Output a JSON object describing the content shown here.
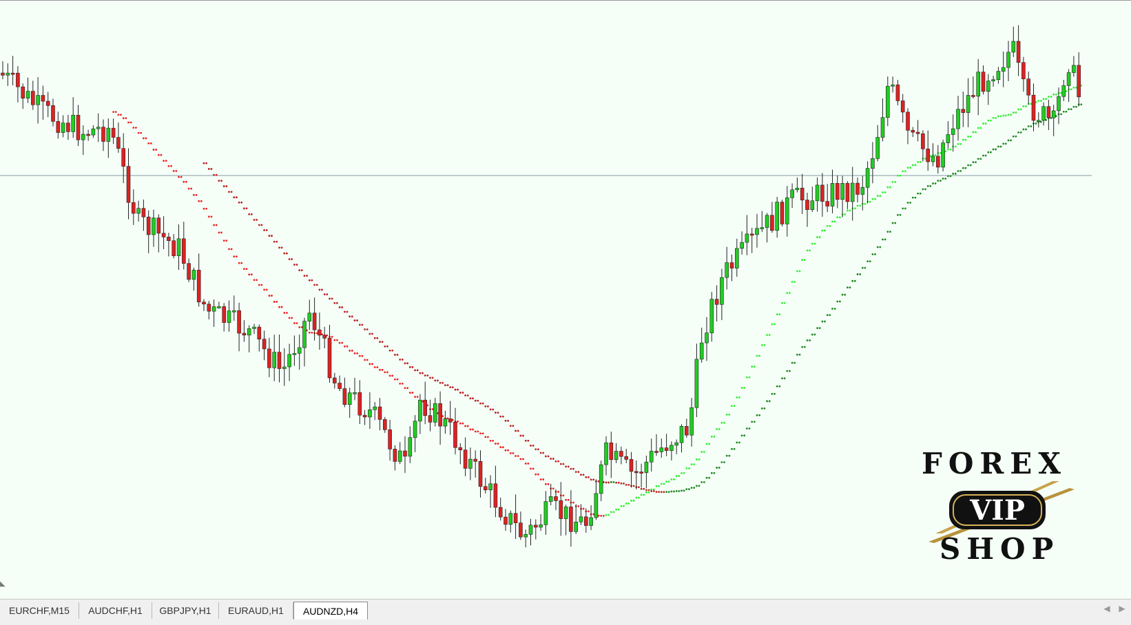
{
  "window": {
    "tabs": [
      {
        "label": "EURCHF,M15",
        "active": false
      },
      {
        "label": "AUDCHF,H1",
        "active": false
      },
      {
        "label": "GBPJPY,H1",
        "active": false
      },
      {
        "label": "EURAUD,H1",
        "active": false
      },
      {
        "label": "AUDNZD,H4",
        "active": true
      }
    ],
    "scroll_left_icon": "triangle-left-icon",
    "scroll_right_icon": "triangle-right-icon"
  },
  "logo": {
    "top_word": "FOREX",
    "badge_word": "VIP",
    "bottom_word": "SHOP"
  },
  "colors": {
    "bull_candle": "#22cc22",
    "bear_candle": "#dd2222",
    "fast_ma_up": "#33ee33",
    "slow_ma_up": "#228822",
    "fast_ma_down": "#ee2222",
    "slow_ma_down": "#bb2222",
    "horizontal_line": "#8898a8",
    "background": "#f5fff8"
  },
  "chart_data": {
    "type": "candlestick",
    "price_axis_visible": false,
    "grid": false,
    "horizontal_line_level": 0.5,
    "normalized_range": [
      0,
      1
    ],
    "candles": [],
    "moving_averages": [
      {
        "role": "fast",
        "color_up": "#33ee33",
        "color_down": "#ee2222"
      },
      {
        "role": "slow",
        "color_up": "#228822",
        "color_down": "#bb2222"
      }
    ]
  }
}
